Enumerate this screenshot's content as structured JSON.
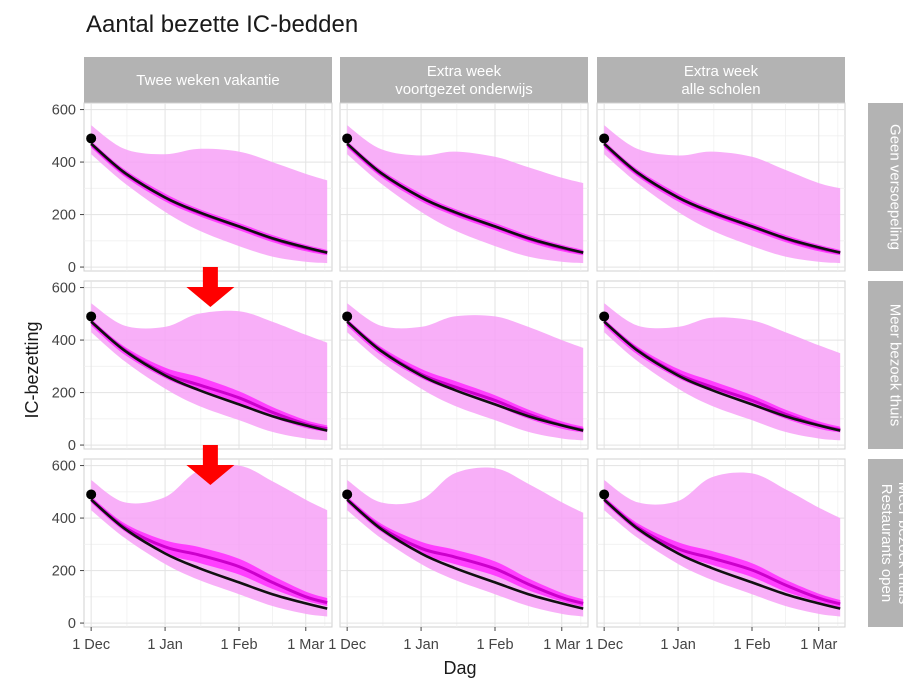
{
  "chart_data": {
    "type": "line",
    "title": "Aantal bezette IC-bedden",
    "xlabel": "Dag",
    "ylabel": "IC-bezetting",
    "xlim": [
      "2020-11-28",
      "2021-03-12"
    ],
    "ylim": [
      -15,
      625
    ],
    "x_ticks": [
      {
        "date": "2020-12-01",
        "label": "1 Dec"
      },
      {
        "date": "2021-01-01",
        "label": "1 Jan"
      },
      {
        "date": "2021-02-01",
        "label": "1 Feb"
      },
      {
        "date": "2021-03-01",
        "label": "1 Mar"
      }
    ],
    "y_ticks": [
      0,
      200,
      400,
      600
    ],
    "grid": true,
    "colors": {
      "band": "#f7a1f7",
      "band_inner": "#ff33ff",
      "median": "#cc00cc",
      "baseline": "#111111",
      "strip": "#b3b3b3",
      "arrow": "#ff0000",
      "point": "#000000"
    },
    "columns": [
      "Twee weken vakantie",
      "Extra week\nvoortgezet onderwijs",
      "Extra week\nalle scholen"
    ],
    "rows": [
      "Geen versoepeling",
      "Meer bezoek thuis",
      "Meer bezoek thuis\nRestaurants open"
    ],
    "observed_point": {
      "date": "2020-12-01",
      "value": 490
    },
    "baseline_series": {
      "name": "",
      "x": [
        "2020-12-01",
        "2020-12-15",
        "2021-01-01",
        "2021-01-15",
        "2021-02-01",
        "2021-02-15",
        "2021-03-01",
        "2021-03-10"
      ],
      "values": [
        470,
        360,
        265,
        210,
        155,
        110,
        75,
        55
      ]
    },
    "facets": [
      {
        "row": 0,
        "col": 0,
        "x": [
          "2020-12-01",
          "2020-12-15",
          "2021-01-01",
          "2021-01-15",
          "2021-02-01",
          "2021-02-15",
          "2021-03-01",
          "2021-03-10"
        ],
        "lower": [
          430,
          320,
          210,
          140,
          80,
          40,
          20,
          15
        ],
        "upper": [
          540,
          450,
          430,
          450,
          440,
          400,
          355,
          330
        ],
        "inner_lower": [
          455,
          345,
          250,
          195,
          140,
          95,
          60,
          45
        ],
        "inner_upper": [
          480,
          372,
          280,
          222,
          168,
          122,
          85,
          65
        ],
        "median": [
          468,
          358,
          265,
          208,
          154,
          108,
          72,
          55
        ]
      },
      {
        "row": 0,
        "col": 1,
        "x": [
          "2020-12-01",
          "2020-12-15",
          "2021-01-01",
          "2021-01-15",
          "2021-02-01",
          "2021-02-15",
          "2021-03-01",
          "2021-03-10"
        ],
        "lower": [
          430,
          320,
          210,
          140,
          80,
          40,
          20,
          15
        ],
        "upper": [
          540,
          450,
          425,
          440,
          420,
          380,
          340,
          320
        ],
        "inner_lower": [
          455,
          345,
          250,
          195,
          140,
          95,
          60,
          45
        ],
        "inner_upper": [
          480,
          372,
          280,
          222,
          168,
          122,
          85,
          65
        ],
        "median": [
          468,
          358,
          265,
          208,
          154,
          108,
          72,
          55
        ]
      },
      {
        "row": 0,
        "col": 2,
        "x": [
          "2020-12-01",
          "2020-12-15",
          "2021-01-01",
          "2021-01-15",
          "2021-02-01",
          "2021-02-15",
          "2021-03-01",
          "2021-03-10"
        ],
        "lower": [
          430,
          320,
          210,
          140,
          80,
          40,
          20,
          15
        ],
        "upper": [
          540,
          450,
          425,
          440,
          420,
          370,
          320,
          300
        ],
        "inner_lower": [
          455,
          345,
          250,
          195,
          140,
          95,
          60,
          45
        ],
        "inner_upper": [
          480,
          372,
          280,
          222,
          168,
          122,
          85,
          65
        ],
        "median": [
          468,
          358,
          265,
          208,
          154,
          108,
          72,
          55
        ]
      },
      {
        "row": 1,
        "col": 0,
        "x": [
          "2020-12-01",
          "2020-12-15",
          "2021-01-01",
          "2021-01-15",
          "2021-02-01",
          "2021-02-15",
          "2021-03-01",
          "2021-03-10"
        ],
        "lower": [
          430,
          320,
          215,
          150,
          95,
          50,
          25,
          18
        ],
        "upper": [
          540,
          455,
          450,
          500,
          510,
          470,
          420,
          390
        ],
        "inner_lower": [
          455,
          345,
          255,
          205,
          155,
          105,
          65,
          50
        ],
        "inner_upper": [
          480,
          375,
          295,
          260,
          205,
          145,
          95,
          75
        ],
        "median": [
          470,
          362,
          272,
          230,
          180,
          125,
          80,
          62
        ]
      },
      {
        "row": 1,
        "col": 1,
        "x": [
          "2020-12-01",
          "2020-12-15",
          "2021-01-01",
          "2021-01-15",
          "2021-02-01",
          "2021-02-15",
          "2021-03-01",
          "2021-03-10"
        ],
        "lower": [
          430,
          320,
          215,
          150,
          95,
          50,
          25,
          18
        ],
        "upper": [
          540,
          455,
          450,
          490,
          490,
          450,
          400,
          370
        ],
        "inner_lower": [
          455,
          345,
          255,
          205,
          150,
          100,
          62,
          48
        ],
        "inner_upper": [
          480,
          375,
          290,
          245,
          190,
          135,
          90,
          70
        ],
        "median": [
          470,
          362,
          270,
          222,
          170,
          118,
          76,
          58
        ]
      },
      {
        "row": 1,
        "col": 2,
        "x": [
          "2020-12-01",
          "2020-12-15",
          "2021-01-01",
          "2021-01-15",
          "2021-02-01",
          "2021-02-15",
          "2021-03-01",
          "2021-03-10"
        ],
        "lower": [
          430,
          320,
          215,
          150,
          95,
          50,
          25,
          18
        ],
        "upper": [
          540,
          455,
          450,
          485,
          475,
          430,
          380,
          350
        ],
        "inner_lower": [
          455,
          345,
          255,
          205,
          150,
          100,
          62,
          48
        ],
        "inner_upper": [
          480,
          375,
          290,
          245,
          190,
          135,
          90,
          70
        ],
        "median": [
          470,
          362,
          270,
          222,
          170,
          118,
          76,
          58
        ]
      },
      {
        "row": 2,
        "col": 0,
        "x": [
          "2020-12-01",
          "2020-12-15",
          "2021-01-01",
          "2021-01-15",
          "2021-02-01",
          "2021-02-15",
          "2021-03-01",
          "2021-03-10"
        ],
        "lower": [
          430,
          325,
          225,
          165,
          110,
          65,
          35,
          25
        ],
        "upper": [
          545,
          460,
          480,
          580,
          600,
          540,
          470,
          430
        ],
        "inner_lower": [
          458,
          350,
          265,
          230,
          185,
          130,
          85,
          65
        ],
        "inner_upper": [
          482,
          380,
          315,
          290,
          245,
          180,
          120,
          95
        ],
        "median": [
          470,
          365,
          290,
          260,
          215,
          155,
          100,
          78
        ]
      },
      {
        "row": 2,
        "col": 1,
        "x": [
          "2020-12-01",
          "2020-12-15",
          "2021-01-01",
          "2021-01-15",
          "2021-02-01",
          "2021-02-15",
          "2021-03-01",
          "2021-03-10"
        ],
        "lower": [
          430,
          325,
          225,
          165,
          110,
          65,
          35,
          25
        ],
        "upper": [
          545,
          460,
          470,
          570,
          590,
          530,
          460,
          420
        ],
        "inner_lower": [
          458,
          350,
          262,
          225,
          180,
          125,
          82,
          62
        ],
        "inner_upper": [
          482,
          380,
          310,
          280,
          235,
          170,
          115,
          90
        ],
        "median": [
          470,
          365,
          285,
          252,
          207,
          148,
          97,
          75
        ]
      },
      {
        "row": 2,
        "col": 2,
        "x": [
          "2020-12-01",
          "2020-12-15",
          "2021-01-01",
          "2021-01-15",
          "2021-02-01",
          "2021-02-15",
          "2021-03-01",
          "2021-03-10"
        ],
        "lower": [
          430,
          325,
          225,
          165,
          110,
          65,
          35,
          25
        ],
        "upper": [
          545,
          460,
          465,
          555,
          570,
          510,
          440,
          400
        ],
        "inner_lower": [
          458,
          350,
          262,
          222,
          175,
          120,
          80,
          60
        ],
        "inner_upper": [
          482,
          380,
          308,
          275,
          228,
          165,
          112,
          88
        ],
        "median": [
          470,
          365,
          283,
          248,
          202,
          145,
          95,
          73
        ]
      }
    ],
    "annotations": [
      {
        "type": "arrow-down",
        "row": 1,
        "col": 0,
        "date": "2021-01-20"
      },
      {
        "type": "arrow-down",
        "row": 2,
        "col": 0,
        "date": "2021-01-20"
      }
    ]
  }
}
